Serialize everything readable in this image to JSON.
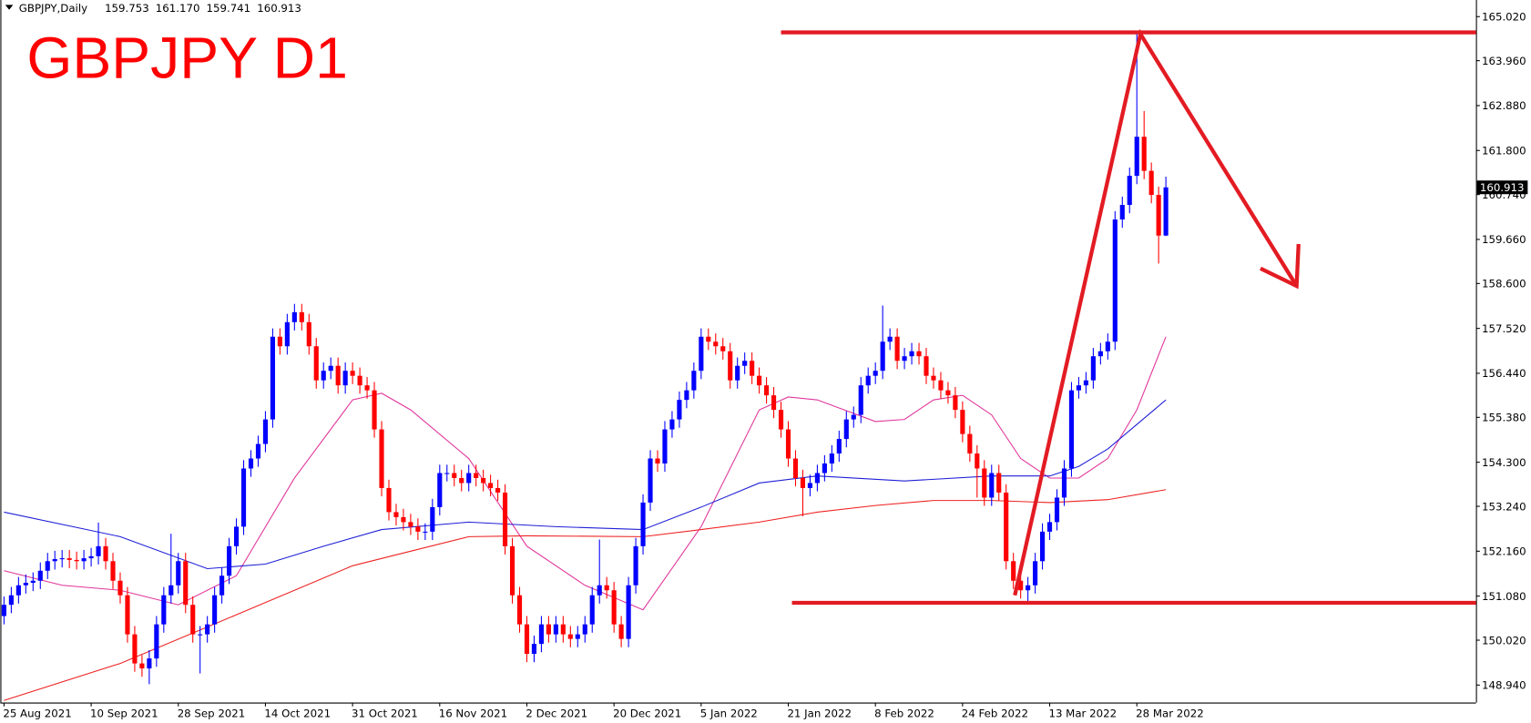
{
  "chart_data": {
    "type": "candlestick",
    "title": "GBPJPY D1",
    "header": {
      "symbol": "GBPJPY,Daily",
      "ohlc": [
        "159.753",
        "161.170",
        "159.741",
        "160.913"
      ]
    },
    "categories": [
      "25 Aug 2021",
      null,
      null,
      null,
      null,
      null,
      null,
      null,
      null,
      null,
      null,
      null,
      "10 Sep 2021",
      null,
      null,
      null,
      null,
      null,
      null,
      null,
      null,
      null,
      null,
      null,
      "28 Sep 2021",
      null,
      null,
      null,
      null,
      null,
      null,
      null,
      null,
      null,
      null,
      null,
      "14 Oct 2021",
      null,
      null,
      null,
      null,
      null,
      null,
      null,
      null,
      null,
      null,
      null,
      "31 Oct 2021",
      null,
      null,
      null,
      null,
      null,
      null,
      null,
      null,
      null,
      null,
      null,
      "16 Nov 2021",
      null,
      null,
      null,
      null,
      null,
      null,
      null,
      null,
      null,
      null,
      null,
      "2 Dec 2021",
      null,
      null,
      null,
      null,
      null,
      null,
      null,
      null,
      null,
      null,
      null,
      "20 Dec 2021",
      null,
      null,
      null,
      null,
      null,
      null,
      null,
      null,
      null,
      null,
      null,
      "5 Jan 2022",
      null,
      null,
      null,
      null,
      null,
      null,
      null,
      null,
      null,
      null,
      null,
      "21 Jan 2022",
      null,
      null,
      null,
      null,
      null,
      null,
      null,
      null,
      null,
      null,
      null,
      "8 Feb 2022",
      null,
      null,
      null,
      null,
      null,
      null,
      null,
      null,
      null,
      null,
      null,
      "24 Feb 2022",
      null,
      null,
      null,
      null,
      null,
      null,
      null,
      null,
      null,
      null,
      null,
      "13 Mar 2022",
      null,
      null,
      null,
      null,
      null,
      null,
      null,
      null,
      null,
      null,
      null,
      "28 Mar 2022",
      null,
      null,
      null,
      null
    ],
    "candles": {
      "up_color": "#0000ff",
      "down_color": "#ff0000",
      "open": [
        150.6,
        150.87,
        151.1,
        151.34,
        151.4,
        151.45,
        151.69,
        151.92,
        151.97,
        151.99,
        151.95,
        151.92,
        151.99,
        152.04,
        152.28,
        151.92,
        151.45,
        151.1,
        150.16,
        149.46,
        149.34,
        149.58,
        150.4,
        151.1,
        151.34,
        151.92,
        150.87,
        150.16,
        150.16,
        150.4,
        151.1,
        151.57,
        152.28,
        152.75,
        154.15,
        154.39,
        154.74,
        155.33,
        157.32,
        157.09,
        157.67,
        157.91,
        157.67,
        157.09,
        156.27,
        156.5,
        156.62,
        156.15,
        156.5,
        156.38,
        156.15,
        156.03,
        155.09,
        153.68,
        153.1,
        152.98,
        152.86,
        152.75,
        152.63,
        152.63,
        153.22,
        154.04,
        154.04,
        153.92,
        153.8,
        154.04,
        153.92,
        153.8,
        153.68,
        153.57,
        152.28,
        151.1,
        150.4,
        149.69,
        149.93,
        150.4,
        150.16,
        150.4,
        150.16,
        150.05,
        150.16,
        150.4,
        151.1,
        151.34,
        151.22,
        150.4,
        150.05,
        151.34,
        152.28,
        153.33,
        154.39,
        154.27,
        155.09,
        155.33,
        155.8,
        156.03,
        156.5,
        157.32,
        157.2,
        157.09,
        156.97,
        156.27,
        156.62,
        156.74,
        156.38,
        156.15,
        155.91,
        155.56,
        155.09,
        154.39,
        153.92,
        153.68,
        153.8,
        154.04,
        154.27,
        154.51,
        154.86,
        155.33,
        155.44,
        156.15,
        156.38,
        156.5,
        157.2,
        157.32,
        156.74,
        156.85,
        156.97,
        156.85,
        156.38,
        156.27,
        156.03,
        155.91,
        155.56,
        154.98,
        154.51,
        154.15,
        153.45,
        154.04,
        153.57,
        151.92,
        151.45,
        151.22,
        151.34,
        151.92,
        152.63,
        152.86,
        153.45,
        154.15,
        156.03,
        156.15,
        156.27,
        156.85,
        156.97,
        157.2,
        160.14,
        160.49,
        161.19,
        162.13,
        161.31,
        160.73,
        159.753
      ],
      "high": [
        151.07,
        151.3,
        151.54,
        151.6,
        151.65,
        151.89,
        152.12,
        152.17,
        152.19,
        152.19,
        152.15,
        152.19,
        152.24,
        152.85,
        152.48,
        152.12,
        151.65,
        151.3,
        150.36,
        149.66,
        149.78,
        150.6,
        151.3,
        152.58,
        152.12,
        152.12,
        151.07,
        150.36,
        150.6,
        151.3,
        151.77,
        152.48,
        152.95,
        154.35,
        154.59,
        154.94,
        155.53,
        157.52,
        157.52,
        157.87,
        158.11,
        158.11,
        157.87,
        157.29,
        156.7,
        156.82,
        156.82,
        156.7,
        156.7,
        156.58,
        156.35,
        156.23,
        155.29,
        153.88,
        153.3,
        153.18,
        153.06,
        152.95,
        152.83,
        153.42,
        154.24,
        154.24,
        154.24,
        154.12,
        154.24,
        154.24,
        154.12,
        154.0,
        153.88,
        153.77,
        152.48,
        151.3,
        150.6,
        150.13,
        150.6,
        150.6,
        150.6,
        150.6,
        150.36,
        150.36,
        150.6,
        151.3,
        152.44,
        151.54,
        151.42,
        150.6,
        151.54,
        152.48,
        153.53,
        154.59,
        154.59,
        155.29,
        155.53,
        156.0,
        156.23,
        156.7,
        157.52,
        157.52,
        157.4,
        157.29,
        157.17,
        156.82,
        156.94,
        156.94,
        156.58,
        156.35,
        156.11,
        155.76,
        155.29,
        154.59,
        154.12,
        154.0,
        154.24,
        154.47,
        154.71,
        155.06,
        155.53,
        155.64,
        156.35,
        156.58,
        156.7,
        158.07,
        157.52,
        157.52,
        157.05,
        157.17,
        157.17,
        157.05,
        156.58,
        156.47,
        156.23,
        156.11,
        155.76,
        155.18,
        154.71,
        154.35,
        154.24,
        154.24,
        153.77,
        152.12,
        151.65,
        151.54,
        152.12,
        152.83,
        153.06,
        153.65,
        154.35,
        156.23,
        156.35,
        156.47,
        157.05,
        157.17,
        157.4,
        160.34,
        160.69,
        161.39,
        164.6,
        162.75,
        161.51,
        160.93,
        161.17
      ],
      "low": [
        150.4,
        150.67,
        150.9,
        151.14,
        151.2,
        151.25,
        151.49,
        151.72,
        151.77,
        151.75,
        151.72,
        151.72,
        151.79,
        151.84,
        151.72,
        151.25,
        150.9,
        149.96,
        149.26,
        149.14,
        148.96,
        149.38,
        150.2,
        150.9,
        151.14,
        150.67,
        149.96,
        149.22,
        149.96,
        150.2,
        150.9,
        151.37,
        152.08,
        152.55,
        153.95,
        154.19,
        154.54,
        155.13,
        156.89,
        156.89,
        157.47,
        157.47,
        156.89,
        156.07,
        156.07,
        156.3,
        155.95,
        155.95,
        156.18,
        155.95,
        155.83,
        154.89,
        153.48,
        152.9,
        152.78,
        152.66,
        152.55,
        152.43,
        152.43,
        152.43,
        153.02,
        153.84,
        153.72,
        153.6,
        153.6,
        153.72,
        153.6,
        153.48,
        153.37,
        152.08,
        150.9,
        150.2,
        149.49,
        149.49,
        149.73,
        149.96,
        149.96,
        149.96,
        149.85,
        149.85,
        149.96,
        150.2,
        150.9,
        151.02,
        150.2,
        149.85,
        149.85,
        151.14,
        152.08,
        153.13,
        154.07,
        154.07,
        154.89,
        155.13,
        155.6,
        155.83,
        156.3,
        157.0,
        156.89,
        156.77,
        156.07,
        156.07,
        156.42,
        156.18,
        155.95,
        155.71,
        155.36,
        154.89,
        154.19,
        153.72,
        153.0,
        153.48,
        153.6,
        153.84,
        154.07,
        154.31,
        154.66,
        155.13,
        155.24,
        155.95,
        156.18,
        156.3,
        157.0,
        156.54,
        156.54,
        156.65,
        156.65,
        156.18,
        156.07,
        155.83,
        155.71,
        155.36,
        154.78,
        154.31,
        153.45,
        153.25,
        153.25,
        153.37,
        151.72,
        151.25,
        151.02,
        150.95,
        151.14,
        151.72,
        152.43,
        152.66,
        153.25,
        153.95,
        155.83,
        155.95,
        156.07,
        156.65,
        156.77,
        157.0,
        159.94,
        160.29,
        160.99,
        161.11,
        160.53,
        159.08,
        159.741
      ],
      "close": [
        150.87,
        151.1,
        151.34,
        151.4,
        151.45,
        151.69,
        151.92,
        151.97,
        151.99,
        151.95,
        151.92,
        151.99,
        152.04,
        152.28,
        151.92,
        151.45,
        151.1,
        150.16,
        149.46,
        149.34,
        149.58,
        150.4,
        151.1,
        151.34,
        151.92,
        150.87,
        150.16,
        150.16,
        150.4,
        151.1,
        151.57,
        152.28,
        152.75,
        154.15,
        154.39,
        154.74,
        155.33,
        157.32,
        157.09,
        157.67,
        157.91,
        157.67,
        157.09,
        156.27,
        156.5,
        156.62,
        156.15,
        156.5,
        156.38,
        156.15,
        156.03,
        155.09,
        153.68,
        153.1,
        152.98,
        152.86,
        152.75,
        152.63,
        152.63,
        153.22,
        154.04,
        154.04,
        153.92,
        153.8,
        154.04,
        153.92,
        153.8,
        153.68,
        153.57,
        152.28,
        151.1,
        150.4,
        149.69,
        149.93,
        150.4,
        150.16,
        150.4,
        150.16,
        150.05,
        150.16,
        150.4,
        151.1,
        151.34,
        151.22,
        150.4,
        150.05,
        151.34,
        152.28,
        153.33,
        154.39,
        154.27,
        155.09,
        155.33,
        155.8,
        156.03,
        156.5,
        157.32,
        157.2,
        157.09,
        156.97,
        156.27,
        156.62,
        156.74,
        156.38,
        156.15,
        155.91,
        155.56,
        155.09,
        154.39,
        153.92,
        153.68,
        153.8,
        154.04,
        154.27,
        154.51,
        154.86,
        155.33,
        155.44,
        156.15,
        156.38,
        156.5,
        157.2,
        157.32,
        156.74,
        156.85,
        156.97,
        156.85,
        156.38,
        156.27,
        156.03,
        155.91,
        155.56,
        154.98,
        154.51,
        154.15,
        153.45,
        154.04,
        153.57,
        151.92,
        151.45,
        151.22,
        151.34,
        151.92,
        152.63,
        152.86,
        153.45,
        154.15,
        156.03,
        156.15,
        156.27,
        156.85,
        156.97,
        157.2,
        160.14,
        160.49,
        161.19,
        162.13,
        161.31,
        160.73,
        159.753,
        160.913
      ]
    },
    "moving_averages": [
      {
        "color": "#e0359a",
        "x": [
          0,
          8,
          16,
          24,
          32,
          40,
          48,
          52,
          56,
          64,
          72,
          80,
          88,
          96,
          104,
          108,
          112,
          120,
          124,
          128,
          132,
          136,
          140,
          144,
          148,
          152,
          156,
          160
        ],
        "values": [
          151.69,
          151.34,
          151.22,
          150.87,
          151.57,
          153.92,
          155.8,
          155.96,
          155.56,
          154.39,
          152.28,
          151.34,
          150.75,
          152.75,
          155.56,
          155.87,
          155.8,
          155.28,
          155.33,
          155.8,
          155.91,
          155.44,
          154.39,
          153.92,
          153.92,
          154.39,
          155.56,
          157.32
        ]
      },
      {
        "color": "#1f1fd6",
        "x": [
          0,
          16,
          28,
          36,
          44,
          52,
          64,
          76,
          88,
          96,
          104,
          112,
          124,
          136,
          144,
          148,
          152,
          160
        ],
        "values": [
          153.1,
          152.51,
          151.74,
          151.85,
          152.28,
          152.68,
          152.86,
          152.75,
          152.68,
          153.22,
          153.8,
          153.97,
          153.85,
          153.97,
          153.97,
          154.2,
          154.62,
          155.8
        ]
      },
      {
        "color": "#ee2222",
        "x": [
          0,
          16,
          32,
          48,
          56,
          64,
          72,
          88,
          96,
          104,
          112,
          120,
          128,
          136,
          144,
          152,
          160
        ],
        "values": [
          148.57,
          149.46,
          150.63,
          151.81,
          152.16,
          152.51,
          152.53,
          152.51,
          152.68,
          152.86,
          153.1,
          153.26,
          153.38,
          153.38,
          153.33,
          153.4,
          153.64
        ]
      }
    ],
    "annotations": {
      "color": "#e31b23",
      "lines": [
        {
          "x": [
            107,
            202.7
          ],
          "values": [
            164.64,
            164.64
          ]
        },
        {
          "x": [
            108.5,
            202.7
          ],
          "values": [
            150.92,
            150.92
          ]
        },
        {
          "x": [
            139.2,
            156.5,
            178
          ],
          "values": [
            151.1,
            164.6,
            158.54
          ],
          "arrow": true
        }
      ]
    },
    "last_price": {
      "value": 160.913,
      "label": "160.913"
    },
    "xlim": [
      -0.5,
      202.7
    ],
    "ylim": [
      148.52,
      165.42
    ],
    "yticks": [
      {
        "value": 165.02,
        "label": "165.020"
      },
      {
        "value": 163.96,
        "label": "163.960"
      },
      {
        "value": 162.88,
        "label": "162.880"
      },
      {
        "value": 161.8,
        "label": "161.800"
      },
      {
        "value": 160.74,
        "label": "160.740"
      },
      {
        "value": 159.66,
        "label": "159.660"
      },
      {
        "value": 158.6,
        "label": "158.600"
      },
      {
        "value": 157.52,
        "label": "157.520"
      },
      {
        "value": 156.44,
        "label": "156.440"
      },
      {
        "value": 155.38,
        "label": "155.380"
      },
      {
        "value": 154.3,
        "label": "154.300"
      },
      {
        "value": 153.24,
        "label": "153.240"
      },
      {
        "value": 152.16,
        "label": "152.160"
      },
      {
        "value": 151.08,
        "label": "151.080"
      },
      {
        "value": 150.02,
        "label": "150.020"
      },
      {
        "value": 148.94,
        "label": "148.940"
      }
    ]
  }
}
